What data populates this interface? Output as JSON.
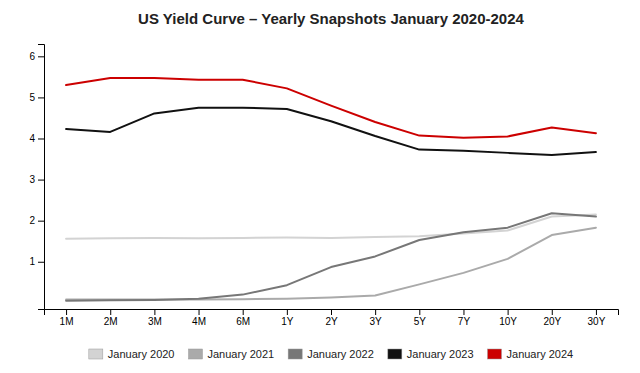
{
  "chart_data": {
    "type": "line",
    "title": "US Yield Curve – Yearly Snapshots January 2020-2024",
    "categories": [
      "1M",
      "2M",
      "3M",
      "4M",
      "6M",
      "1Y",
      "2Y",
      "3Y",
      "5Y",
      "7Y",
      "10Y",
      "20Y",
      "30Y"
    ],
    "series": [
      {
        "name": "January 2020",
        "color": "#d3d3d3",
        "values": [
          1.56,
          1.57,
          1.58,
          1.57,
          1.58,
          1.59,
          1.58,
          1.6,
          1.62,
          1.69,
          1.76,
          2.1,
          2.15
        ]
      },
      {
        "name": "January 2021",
        "color": "#aaaaaa",
        "values": [
          0.08,
          0.08,
          0.08,
          0.08,
          0.09,
          0.1,
          0.13,
          0.18,
          0.45,
          0.73,
          1.07,
          1.65,
          1.83
        ]
      },
      {
        "name": "January 2022",
        "color": "#777777",
        "values": [
          0.05,
          0.06,
          0.07,
          0.1,
          0.2,
          0.43,
          0.87,
          1.13,
          1.53,
          1.72,
          1.83,
          2.18,
          2.1
        ]
      },
      {
        "name": "January 2023",
        "color": "#111111",
        "values": [
          4.23,
          4.16,
          4.61,
          4.75,
          4.75,
          4.72,
          4.42,
          4.06,
          3.73,
          3.7,
          3.65,
          3.6,
          3.67
        ]
      },
      {
        "name": "January 2024",
        "color": "#cc0000",
        "values": [
          5.3,
          5.47,
          5.47,
          5.43,
          5.43,
          5.22,
          4.8,
          4.4,
          4.07,
          4.02,
          4.05,
          4.27,
          4.13
        ]
      }
    ],
    "ylim": [
      -0.15,
      6.3
    ],
    "yticks": [
      1,
      2,
      3,
      4,
      5,
      6
    ],
    "grid": false,
    "legend": "bottom"
  }
}
